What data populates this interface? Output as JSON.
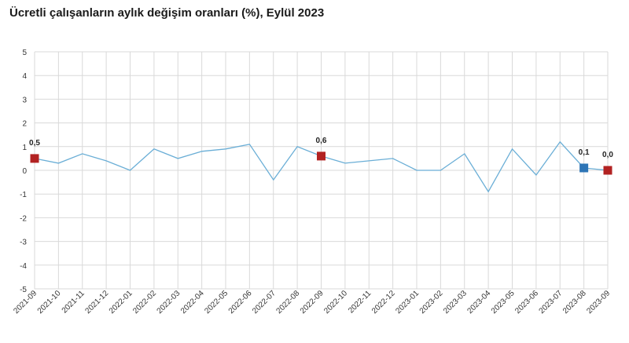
{
  "title": "Ücretli çalışanların aylık değişim oranları (%), Eylül 2023",
  "colors": {
    "line": "#6aaed6",
    "grid": "#d9d9d9",
    "marker_red": "#b22222",
    "marker_blue": "#2e75b6"
  },
  "chart_data": {
    "type": "line",
    "title": "Ücretli çalışanların aylık değişim oranları (%), Eylül 2023",
    "xlabel": "",
    "ylabel": "",
    "ylim": [
      -5,
      5
    ],
    "yticks": [
      "5",
      "4",
      "3",
      "2",
      "1",
      "0",
      "-1",
      "-2",
      "-3",
      "-4",
      "-5"
    ],
    "grid": true,
    "categories": [
      "2021-09",
      "2021-10",
      "2021-11",
      "2021-12",
      "2022-01",
      "2022-02",
      "2022-03",
      "2022-04",
      "2022-05",
      "2022-06",
      "2022-07",
      "2022-08",
      "2022-09",
      "2022-10",
      "2022-11",
      "2022-12",
      "2023-01",
      "2023-02",
      "2023-03",
      "2023-04",
      "2023-05",
      "2023-06",
      "2023-07",
      "2023-08",
      "2023-09"
    ],
    "series": [
      {
        "values": [
          0.5,
          0.3,
          0.7,
          0.4,
          0.0,
          0.9,
          0.5,
          0.8,
          0.9,
          1.1,
          -0.4,
          1.0,
          0.6,
          0.3,
          0.4,
          0.5,
          0.0,
          0.0,
          0.7,
          -0.9,
          0.9,
          -0.2,
          1.2,
          0.1,
          0.0
        ]
      }
    ],
    "highlights": [
      {
        "index": 0,
        "label": "0,5",
        "color": "red"
      },
      {
        "index": 12,
        "label": "0,6",
        "color": "red"
      },
      {
        "index": 23,
        "label": "0,1",
        "color": "blue"
      },
      {
        "index": 24,
        "label": "0,0",
        "color": "red"
      }
    ]
  }
}
